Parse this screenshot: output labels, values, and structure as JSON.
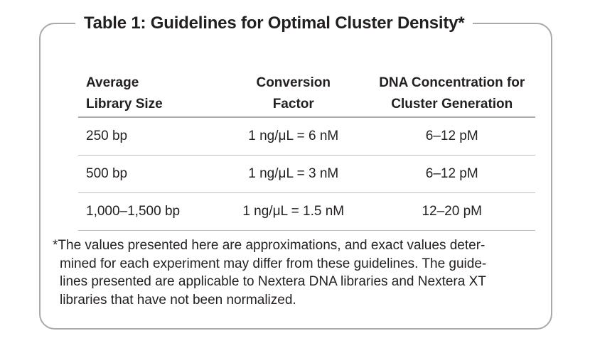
{
  "table": {
    "title": "Table 1: Guidelines for Optimal Cluster Density*",
    "headers": [
      [
        "Average",
        "Library Size"
      ],
      [
        "Conversion",
        "Factor"
      ],
      [
        "DNA Concentration for",
        "Cluster Generation"
      ]
    ],
    "rows": [
      [
        "250 bp",
        "1 ng/μL = 6 nM",
        "6–12 pM"
      ],
      [
        "500 bp",
        "1 ng/μL = 3 nM",
        "6–12 pM"
      ],
      [
        "1,000–1,500 bp",
        "1 ng/μL = 1.5 nM",
        "12–20 pM"
      ]
    ]
  },
  "footnote": {
    "lines": [
      "*The values presented here are approximations, and exact values deter-",
      "mined for each experiment may differ from these guidelines. The guide-",
      "lines presented are applicable to Nextera DNA libraries and Nextera XT",
      "libraries that have not been normalized."
    ]
  }
}
